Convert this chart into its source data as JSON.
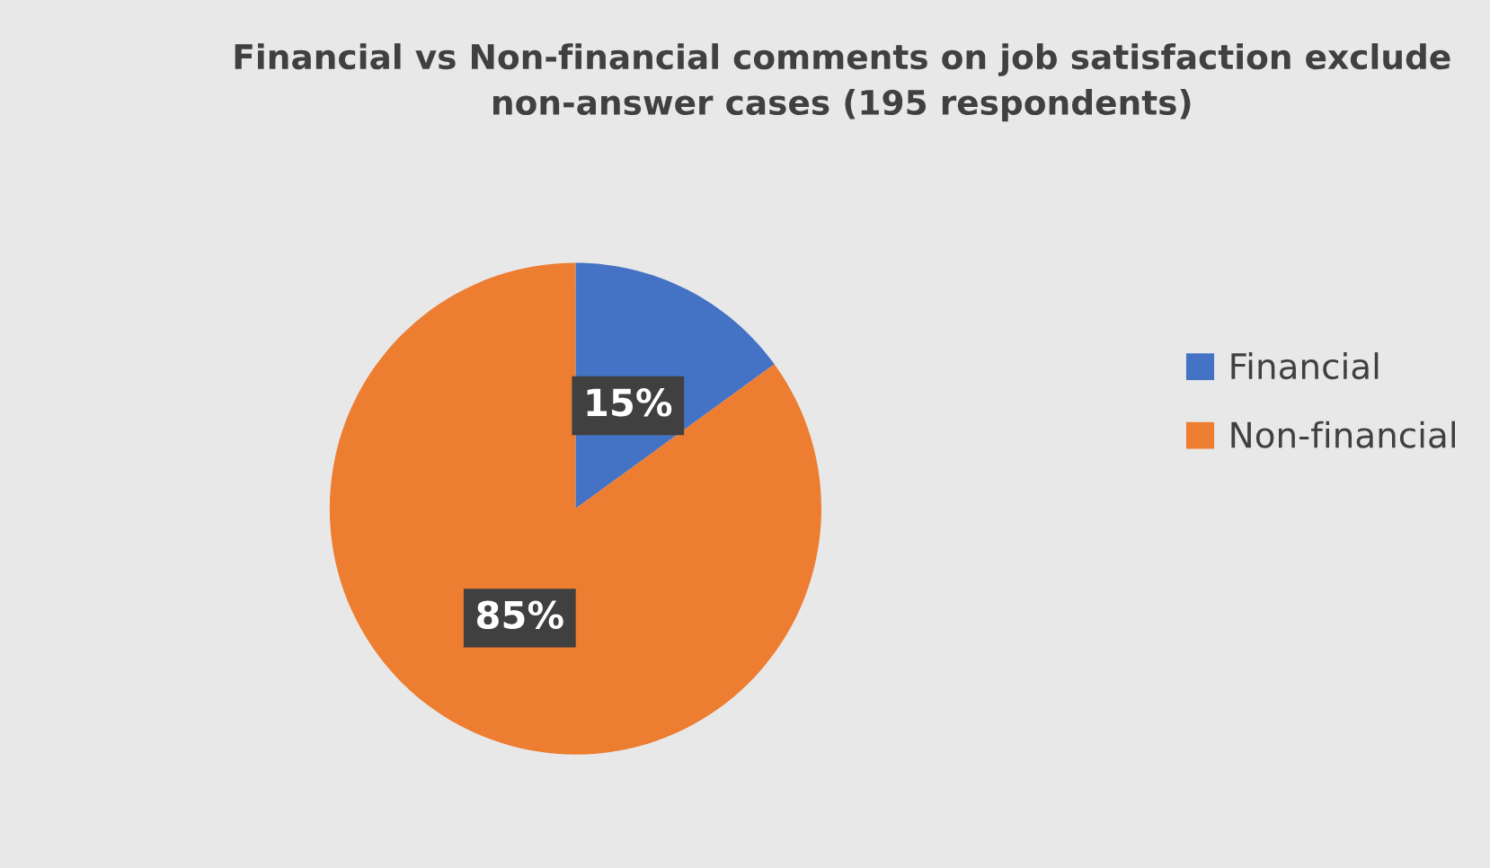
{
  "chart_data": {
    "type": "pie",
    "title": "Financial vs Non-financial comments on job satisfaction exclude\nnon-answer cases (195 respondents)",
    "categories": [
      "Financial",
      "Non-financial"
    ],
    "values": [
      15,
      85
    ],
    "colors": [
      "#4472c4",
      "#ed7d31"
    ],
    "value_labels": [
      "15%",
      "85%"
    ],
    "legend": "right"
  }
}
